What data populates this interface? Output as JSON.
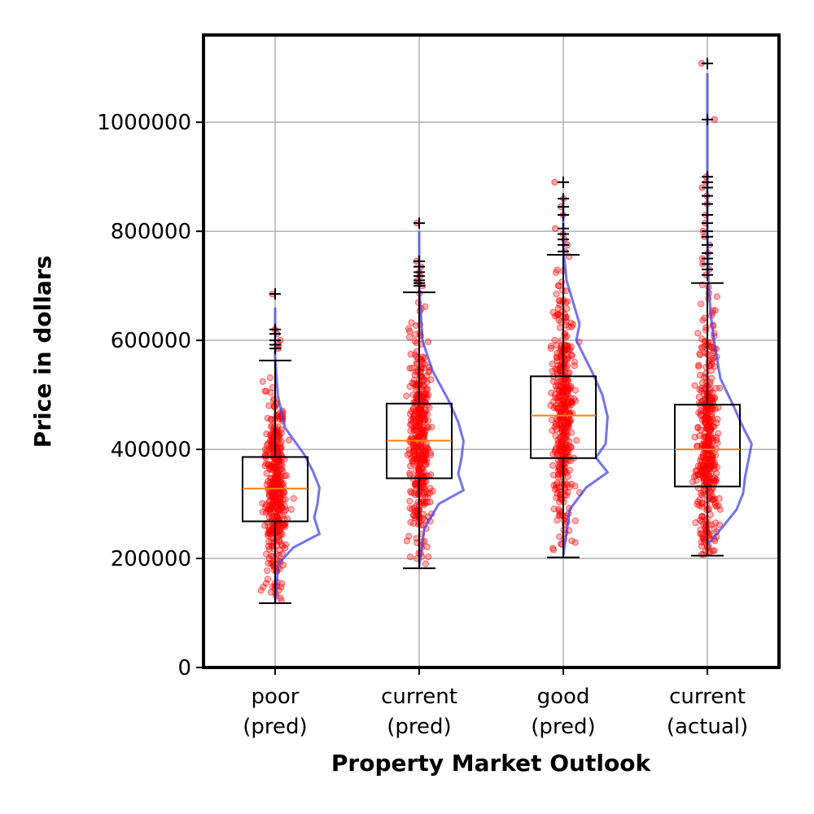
{
  "chart_data": {
    "type": "box",
    "title": "",
    "xlabel": "Property Market Outlook",
    "ylabel": "Price in dollars",
    "ylim": [
      0,
      1160000
    ],
    "yticks": [
      0,
      200000,
      400000,
      600000,
      800000,
      1000000
    ],
    "ytick_labels": [
      "0",
      "200000",
      "400000",
      "600000",
      "800000",
      "1000000"
    ],
    "grid": true,
    "categories": [
      {
        "line1": "poor",
        "line2": "(pred)"
      },
      {
        "line1": "current",
        "line2": "(pred)"
      },
      {
        "line1": "good",
        "line2": "(pred)"
      },
      {
        "line1": "current",
        "line2": "(actual)"
      }
    ],
    "boxes": [
      {
        "whisker_low": 118000,
        "q1": 268000,
        "median": 328000,
        "q3": 386000,
        "whisker_high": 563000,
        "outliers": [
          585000,
          592000,
          600000,
          612000,
          620000,
          685000
        ]
      },
      {
        "whisker_low": 182000,
        "q1": 347000,
        "median": 416000,
        "q3": 484000,
        "whisker_high": 688000,
        "outliers": [
          700000,
          705000,
          710000,
          718000,
          725000,
          735000,
          745000,
          815000
        ]
      },
      {
        "whisker_low": 202000,
        "q1": 384000,
        "median": 462000,
        "q3": 534000,
        "whisker_high": 757000,
        "outliers": [
          763000,
          775000,
          785000,
          795000,
          805000,
          830000,
          845000,
          860000,
          890000
        ]
      },
      {
        "whisker_low": 205000,
        "q1": 332000,
        "median": 400000,
        "q3": 482000,
        "whisker_high": 705000,
        "outliers": [
          720000,
          730000,
          740000,
          750000,
          760000,
          775000,
          790000,
          800000,
          815000,
          830000,
          850000,
          865000,
          880000,
          890000,
          900000,
          1005000,
          1108000
        ]
      }
    ],
    "density_curves": [
      [
        [
          120000,
          0.0
        ],
        [
          190000,
          0.05
        ],
        [
          220000,
          0.28
        ],
        [
          245000,
          0.68
        ],
        [
          275000,
          0.6
        ],
        [
          300000,
          0.65
        ],
        [
          330000,
          0.68
        ],
        [
          360000,
          0.58
        ],
        [
          390000,
          0.45
        ],
        [
          440000,
          0.15
        ],
        [
          500000,
          0.04
        ],
        [
          570000,
          0.0
        ],
        [
          660000,
          0.0
        ]
      ],
      [
        [
          185000,
          0.0
        ],
        [
          255000,
          0.08
        ],
        [
          300000,
          0.3
        ],
        [
          325000,
          0.68
        ],
        [
          355000,
          0.6
        ],
        [
          385000,
          0.65
        ],
        [
          415000,
          0.68
        ],
        [
          450000,
          0.6
        ],
        [
          490000,
          0.45
        ],
        [
          545000,
          0.2
        ],
        [
          600000,
          0.05
        ],
        [
          700000,
          0.0
        ],
        [
          800000,
          0.0
        ]
      ],
      [
        [
          205000,
          0.0
        ],
        [
          290000,
          0.1
        ],
        [
          330000,
          0.35
        ],
        [
          358000,
          0.68
        ],
        [
          385000,
          0.5
        ],
        [
          410000,
          0.65
        ],
        [
          460000,
          0.68
        ],
        [
          500000,
          0.6
        ],
        [
          540000,
          0.45
        ],
        [
          600000,
          0.2
        ],
        [
          630000,
          0.25
        ],
        [
          710000,
          0.05
        ],
        [
          770000,
          0.0
        ],
        [
          860000,
          0.0
        ]
      ],
      [
        [
          225000,
          0.0
        ],
        [
          260000,
          0.25
        ],
        [
          290000,
          0.45
        ],
        [
          320000,
          0.55
        ],
        [
          350000,
          0.58
        ],
        [
          410000,
          0.68
        ],
        [
          440000,
          0.55
        ],
        [
          480000,
          0.4
        ],
        [
          530000,
          0.2
        ],
        [
          600000,
          0.1
        ],
        [
          650000,
          0.05
        ],
        [
          700000,
          0.02
        ],
        [
          800000,
          0.0
        ],
        [
          1090000,
          0.0
        ]
      ]
    ],
    "series_colors": {
      "points": "#ff0000",
      "density": "#4444ee",
      "median": "#ff7f0e",
      "box": "#000000",
      "grid": "#b0b0b0"
    }
  }
}
